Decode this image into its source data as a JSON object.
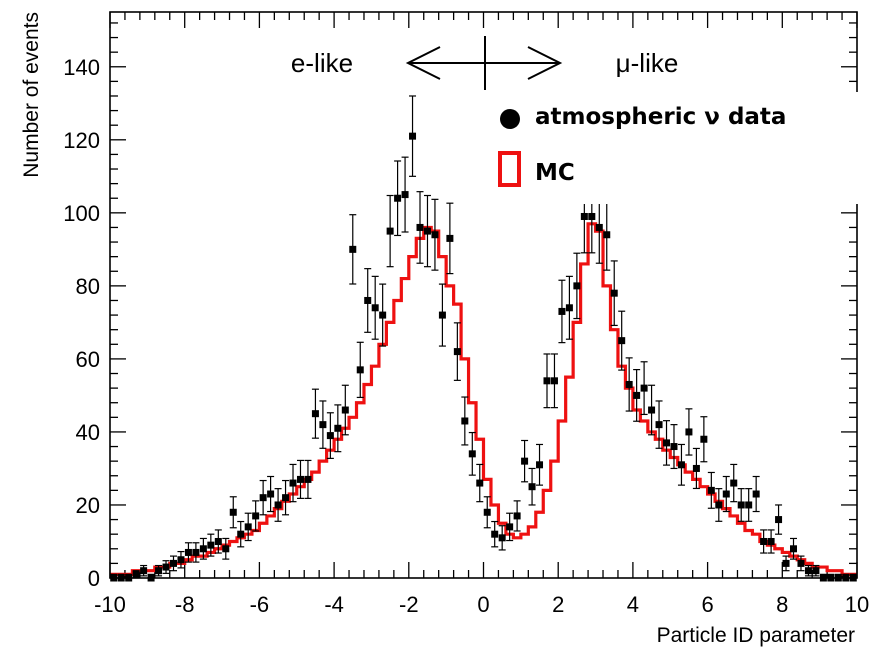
{
  "chart_data": {
    "type": "scatter",
    "title": "",
    "xlabel": "Particle ID parameter",
    "ylabel": "Number of events",
    "xlim": [
      -10,
      10
    ],
    "ylim": [
      0,
      155
    ],
    "x_ticks": [
      -10,
      -8,
      -6,
      -4,
      -2,
      0,
      2,
      4,
      6,
      8,
      10
    ],
    "y_ticks": [
      0,
      20,
      40,
      60,
      80,
      100,
      120,
      140
    ],
    "grid": false,
    "legend_position": "top-right",
    "annotations": {
      "left": "e-like",
      "right": "μ-like"
    },
    "colors": {
      "data": "#000000",
      "mc": "#ee1111"
    },
    "series": [
      {
        "name": "atmospheric ν data",
        "kind": "points-with-errors",
        "points": [
          [
            -9.9,
            0
          ],
          [
            -9.7,
            0
          ],
          [
            -9.5,
            0
          ],
          [
            -9.3,
            1
          ],
          [
            -9.1,
            2
          ],
          [
            -8.9,
            0
          ],
          [
            -8.7,
            2
          ],
          [
            -8.5,
            3
          ],
          [
            -8.3,
            4
          ],
          [
            -8.1,
            5
          ],
          [
            -7.9,
            7
          ],
          [
            -7.7,
            7
          ],
          [
            -7.5,
            8
          ],
          [
            -7.3,
            9
          ],
          [
            -7.1,
            10
          ],
          [
            -6.9,
            8
          ],
          [
            -6.7,
            18
          ],
          [
            -6.5,
            12
          ],
          [
            -6.3,
            14
          ],
          [
            -6.1,
            17
          ],
          [
            -5.9,
            22
          ],
          [
            -5.7,
            23
          ],
          [
            -5.5,
            20
          ],
          [
            -5.3,
            22
          ],
          [
            -5.1,
            26
          ],
          [
            -4.9,
            27
          ],
          [
            -4.7,
            27
          ],
          [
            -4.5,
            45
          ],
          [
            -4.3,
            42
          ],
          [
            -4.1,
            39
          ],
          [
            -3.9,
            41
          ],
          [
            -3.7,
            46
          ],
          [
            -3.5,
            90
          ],
          [
            -3.3,
            57
          ],
          [
            -3.1,
            76
          ],
          [
            -2.9,
            74
          ],
          [
            -2.7,
            72
          ],
          [
            -2.5,
            95
          ],
          [
            -2.3,
            104
          ],
          [
            -2.1,
            105
          ],
          [
            -1.9,
            121
          ],
          [
            -1.7,
            96
          ],
          [
            -1.5,
            95
          ],
          [
            -1.3,
            94
          ],
          [
            -1.1,
            72
          ],
          [
            -0.9,
            93
          ],
          [
            -0.7,
            62
          ],
          [
            -0.5,
            43
          ],
          [
            -0.3,
            34
          ],
          [
            -0.1,
            26
          ],
          [
            0.1,
            18
          ],
          [
            0.3,
            12
          ],
          [
            0.5,
            11
          ],
          [
            0.7,
            14
          ],
          [
            0.9,
            17
          ],
          [
            1.1,
            32
          ],
          [
            1.3,
            25
          ],
          [
            1.5,
            31
          ],
          [
            1.7,
            54
          ],
          [
            1.9,
            54
          ],
          [
            2.1,
            73
          ],
          [
            2.3,
            74
          ],
          [
            2.5,
            80
          ],
          [
            2.7,
            99
          ],
          [
            2.9,
            99
          ],
          [
            3.1,
            96
          ],
          [
            3.3,
            94
          ],
          [
            3.5,
            78
          ],
          [
            3.7,
            65
          ],
          [
            3.9,
            53
          ],
          [
            4.1,
            50
          ],
          [
            4.3,
            52
          ],
          [
            4.5,
            46
          ],
          [
            4.7,
            42
          ],
          [
            4.9,
            37
          ],
          [
            5.1,
            36
          ],
          [
            5.3,
            31
          ],
          [
            5.5,
            40
          ],
          [
            5.7,
            30
          ],
          [
            5.9,
            38
          ],
          [
            6.1,
            24
          ],
          [
            6.3,
            20
          ],
          [
            6.5,
            23
          ],
          [
            6.7,
            26
          ],
          [
            6.9,
            20
          ],
          [
            7.1,
            20
          ],
          [
            7.3,
            23
          ],
          [
            7.5,
            10
          ],
          [
            7.7,
            10
          ],
          [
            7.9,
            16
          ],
          [
            8.1,
            4
          ],
          [
            8.3,
            8
          ],
          [
            8.5,
            4
          ],
          [
            8.7,
            2
          ],
          [
            8.9,
            2
          ],
          [
            9.1,
            0
          ],
          [
            9.3,
            0
          ],
          [
            9.5,
            0
          ],
          [
            9.7,
            0
          ],
          [
            9.9,
            0
          ]
        ]
      },
      {
        "name": "MC",
        "kind": "histogram-step",
        "bin_width": 0.2,
        "bin_start": -10,
        "values": [
          1,
          1,
          1,
          2,
          2,
          2,
          3,
          3,
          4,
          4,
          5,
          6,
          6,
          7,
          8,
          9,
          10,
          11,
          12,
          13,
          15,
          17,
          19,
          21,
          23,
          25,
          27,
          29,
          32,
          35,
          38,
          41,
          44,
          48,
          53,
          58,
          64,
          70,
          76,
          82,
          88,
          93,
          96,
          95,
          88,
          80,
          75,
          60,
          48,
          38,
          27,
          20,
          15,
          12,
          11,
          12,
          14,
          18,
          24,
          32,
          43,
          55,
          70,
          86,
          97,
          95,
          80,
          68,
          58,
          52,
          46,
          43,
          40,
          38,
          35,
          33,
          31,
          29,
          27,
          25,
          23,
          21,
          19,
          17,
          15,
          13,
          12,
          10,
          9,
          8,
          7,
          6,
          5,
          4,
          3,
          3,
          2,
          2,
          1,
          1
        ]
      }
    ]
  }
}
